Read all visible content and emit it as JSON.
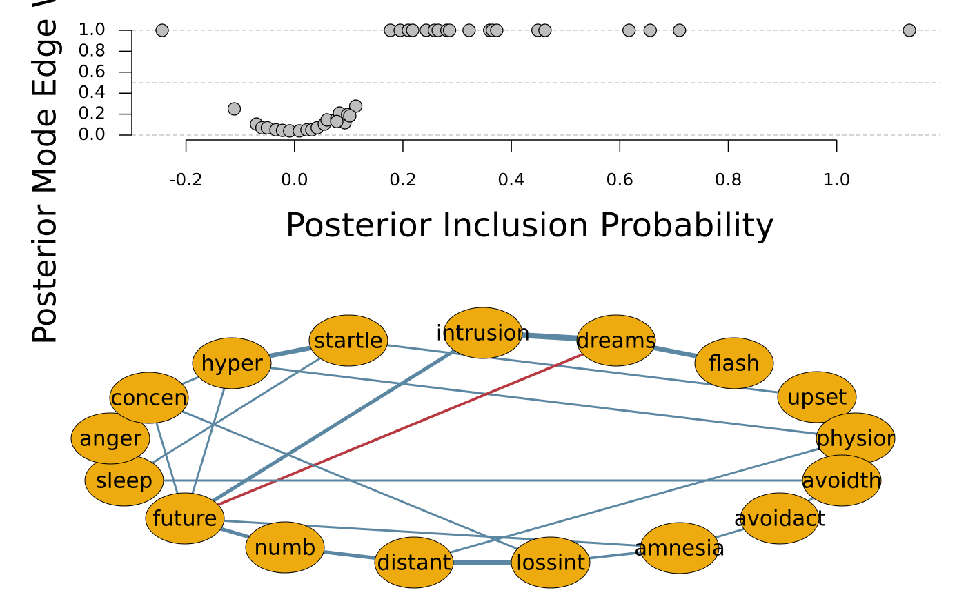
{
  "chart_data": {
    "type": "scatter",
    "xlabel": "Posterior Inclusion Probability",
    "ylabel": "Posterior Mode Edge Weight",
    "x": [
      -0.244,
      0.177,
      0.195,
      0.21,
      0.218,
      0.243,
      0.258,
      0.265,
      0.281,
      0.286,
      0.322,
      0.36,
      0.365,
      0.373,
      0.449,
      0.462,
      0.617,
      0.656,
      0.71,
      1.134,
      -0.111,
      0.113,
      -0.07,
      -0.06,
      -0.05,
      -0.034,
      -0.022,
      -0.009,
      0.009,
      0.023,
      0.032,
      0.042,
      0.055,
      0.06,
      0.078,
      0.083,
      0.093,
      0.098,
      0.102,
      0.078
    ],
    "values": [
      1,
      1,
      1,
      1,
      1,
      1,
      1,
      1,
      1,
      1,
      1,
      1,
      1,
      1,
      1,
      1,
      1,
      1,
      1,
      1,
      0.25,
      0.276,
      0.105,
      0.07,
      0.07,
      0.05,
      0.045,
      0.04,
      0.04,
      0.05,
      0.05,
      0.07,
      0.105,
      0.145,
      0.158,
      0.21,
      0.118,
      0.197,
      0.184,
      0.13
    ],
    "color": "#bebebe",
    "xlim": [
      -0.3,
      1.19
    ],
    "ylim": [
      0,
      1
    ],
    "xticks": [
      -0.2,
      {
        "value": 0,
        "label": "0.0"
      },
      0.2,
      0.4,
      0.6,
      0.8,
      {
        "value": 1,
        "label": "1.0"
      }
    ],
    "yticks": [
      {
        "value": 0,
        "label": "0.0"
      },
      0.2,
      0.4,
      0.6,
      0.8,
      {
        "value": 1,
        "label": "1.0"
      }
    ],
    "grid_lines": [
      0,
      0.5,
      1
    ]
  },
  "network": {
    "node_color": "#eeab0f",
    "nodes": [
      {
        "label": "intrusion"
      },
      {
        "label": "dreams"
      },
      {
        "label": "flash"
      },
      {
        "label": "upset"
      },
      {
        "label": "physior"
      },
      {
        "label": "avoidth"
      },
      {
        "label": "avoidact"
      },
      {
        "label": "amnesia"
      },
      {
        "label": "lossint"
      },
      {
        "label": "distant"
      },
      {
        "label": "numb"
      },
      {
        "label": "future"
      },
      {
        "label": "sleep"
      },
      {
        "label": "anger"
      },
      {
        "label": "concen"
      },
      {
        "label": "hyper"
      },
      {
        "label": "startle"
      }
    ],
    "edges": [
      {
        "from": 0,
        "to": 1,
        "weight": 0.55,
        "color": "#5b87a3"
      },
      {
        "from": 1,
        "to": 2,
        "weight": 0.45,
        "color": "#5b87a3"
      },
      {
        "from": 15,
        "to": 16,
        "weight": 0.45,
        "color": "#5b87a3"
      },
      {
        "from": 16,
        "to": 3,
        "weight": 0.2,
        "color": "#5b87a3"
      },
      {
        "from": 15,
        "to": 4,
        "weight": 0.2,
        "color": "#5b87a3"
      },
      {
        "from": 15,
        "to": 14,
        "weight": 0.2,
        "color": "#5b87a3"
      },
      {
        "from": 15,
        "to": 11,
        "weight": 0.2,
        "color": "#5b87a3"
      },
      {
        "from": 16,
        "to": 12,
        "weight": 0.2,
        "color": "#5b87a3"
      },
      {
        "from": 0,
        "to": 11,
        "weight": 0.35,
        "color": "#5b87a3"
      },
      {
        "from": 1,
        "to": 11,
        "weight": 0.25,
        "color": "#b8383f"
      },
      {
        "from": 14,
        "to": 11,
        "weight": 0.2,
        "color": "#5b87a3"
      },
      {
        "from": 14,
        "to": 8,
        "weight": 0.2,
        "color": "#5b87a3"
      },
      {
        "from": 12,
        "to": 5,
        "weight": 0.2,
        "color": "#5b87a3"
      },
      {
        "from": 11,
        "to": 10,
        "weight": 0.35,
        "color": "#5b87a3"
      },
      {
        "from": 11,
        "to": 7,
        "weight": 0.2,
        "color": "#5b87a3"
      },
      {
        "from": 10,
        "to": 9,
        "weight": 0.35,
        "color": "#5b87a3"
      },
      {
        "from": 9,
        "to": 8,
        "weight": 0.45,
        "color": "#5b87a3"
      },
      {
        "from": 8,
        "to": 7,
        "weight": 0.25,
        "color": "#5b87a3"
      },
      {
        "from": 7,
        "to": 6,
        "weight": 0.2,
        "color": "#5b87a3"
      },
      {
        "from": 6,
        "to": 5,
        "weight": 0.2,
        "color": "#5b87a3"
      },
      {
        "from": 9,
        "to": 4,
        "weight": 0.2,
        "color": "#5b87a3"
      }
    ]
  }
}
